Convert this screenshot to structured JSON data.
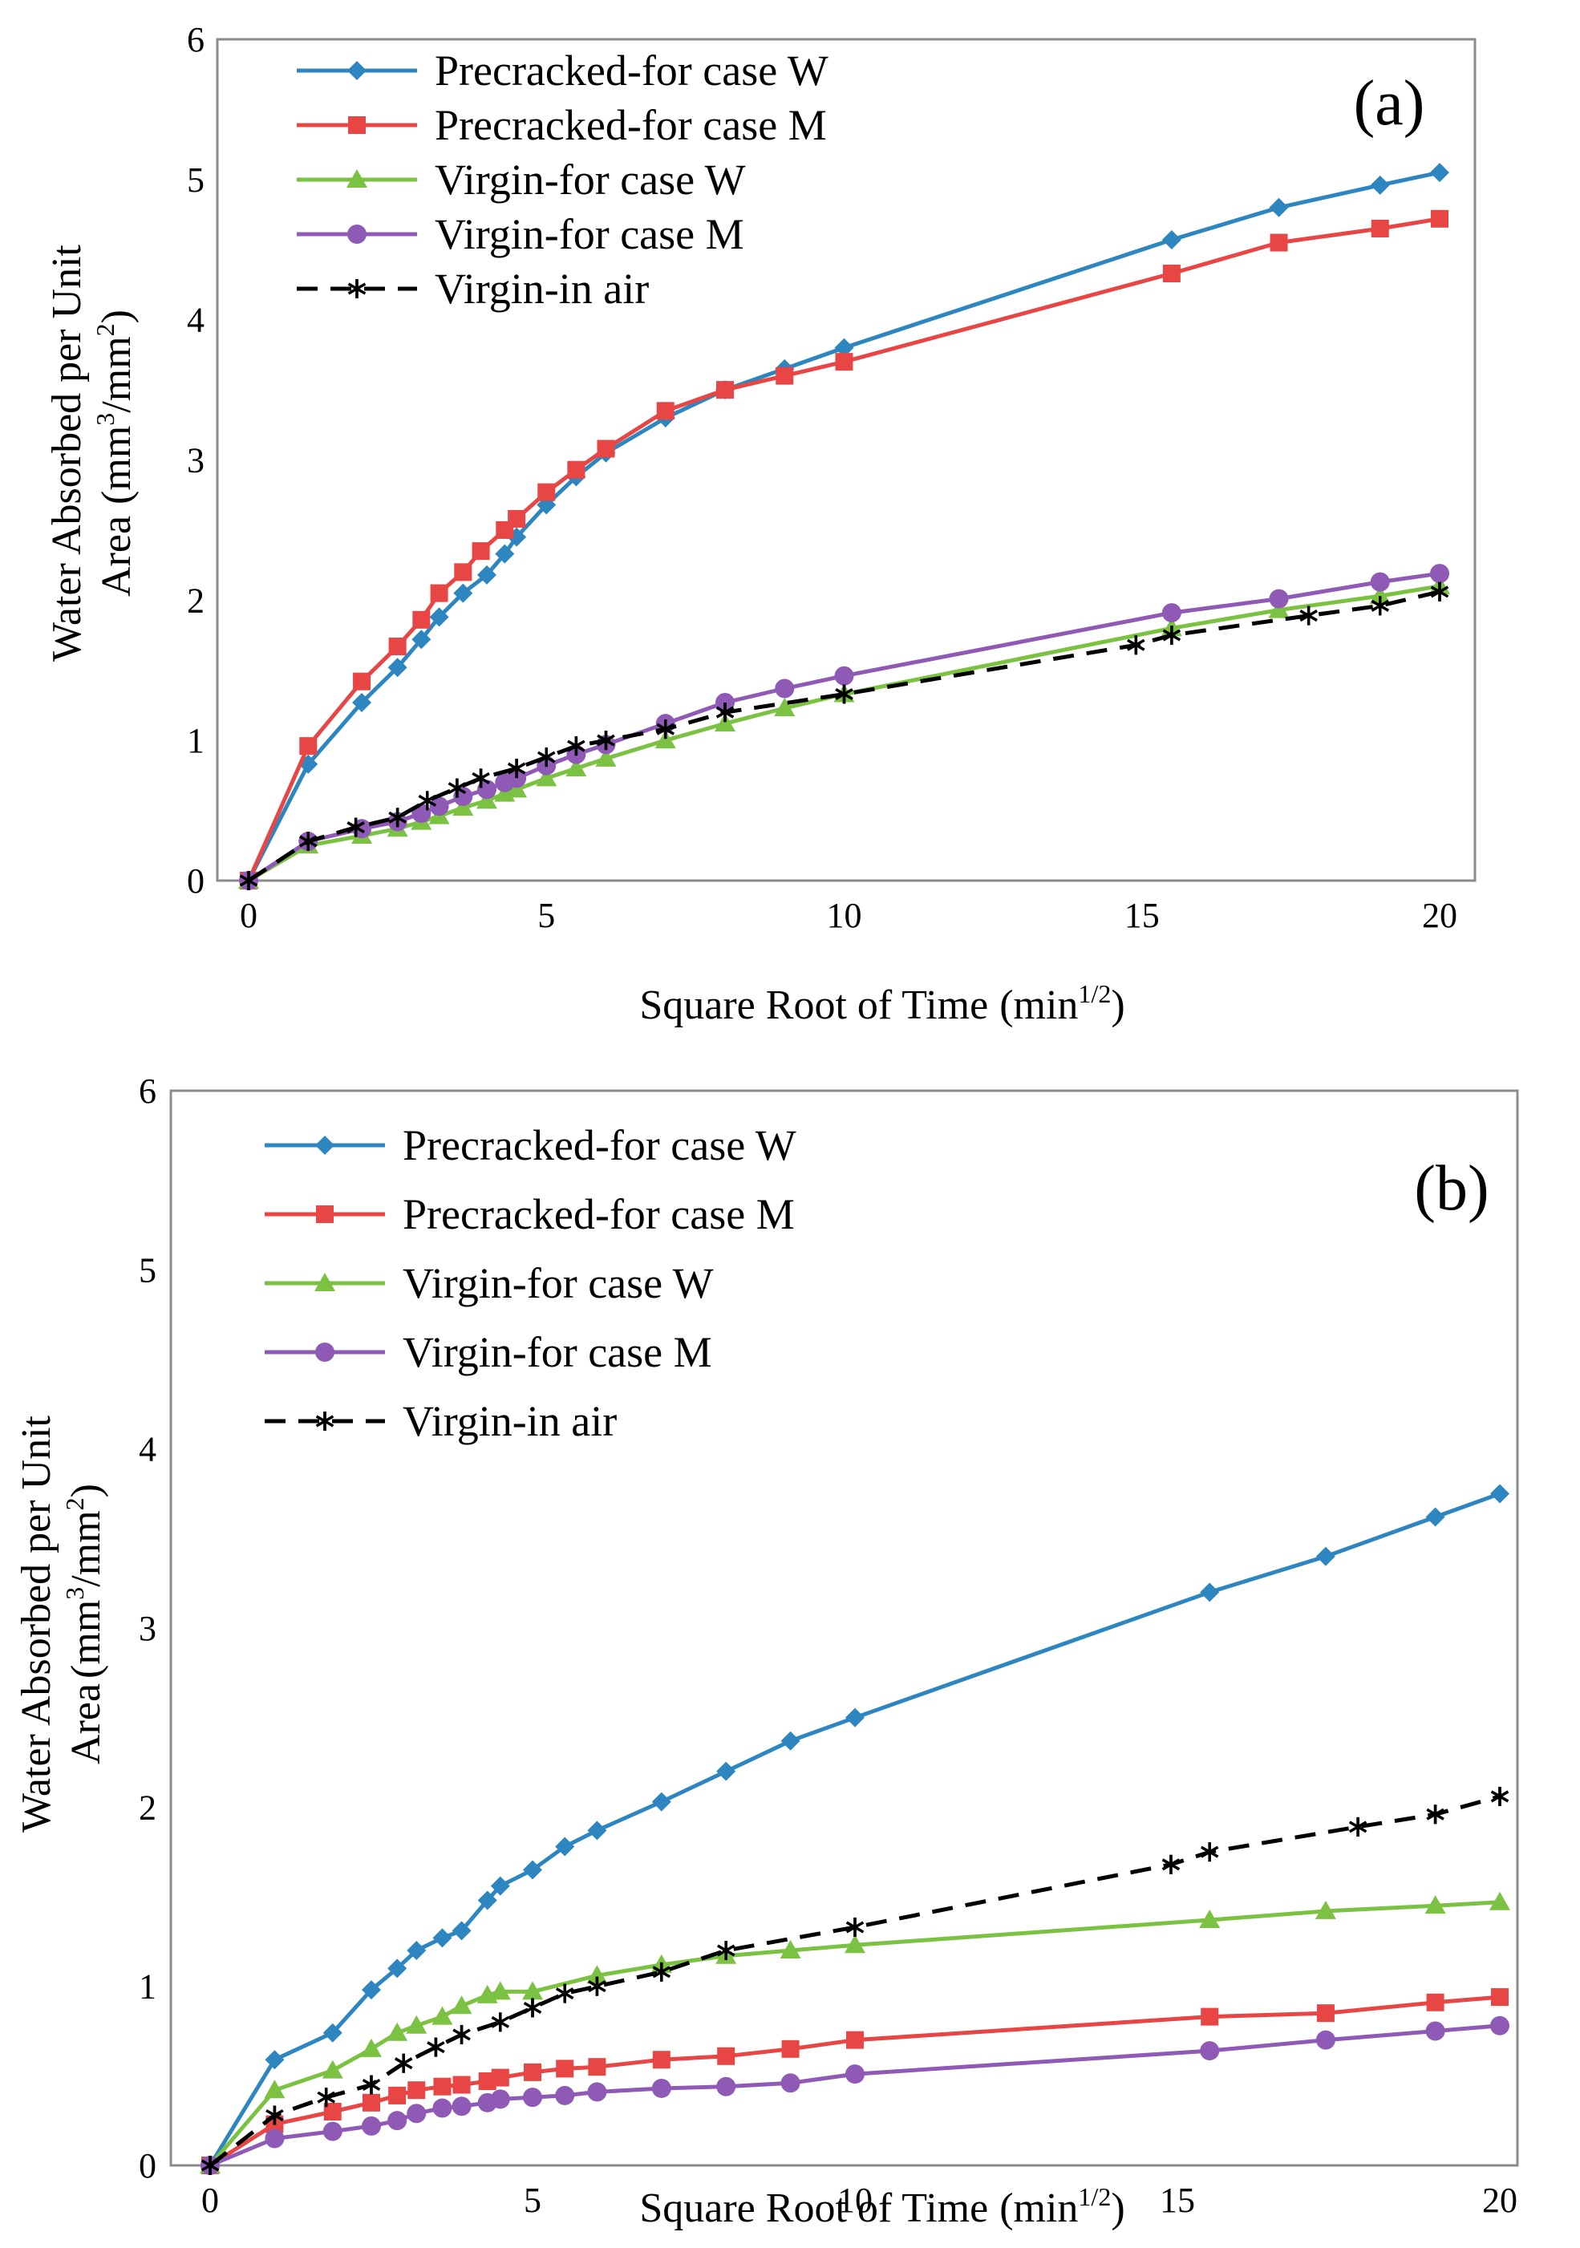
{
  "chart_data": [
    {
      "type": "line",
      "panel_label": "(a)",
      "xlabel": "Square Root of Time",
      "xlabel_unit": "min",
      "xlabel_unit_exp": "1/2",
      "ylabel_line1": "Water Absorbed per Unit",
      "ylabel_line2": "Area",
      "ylabel_unit": "mm",
      "ylabel_unit_exp_num": "3",
      "ylabel_unit_mid": "/mm",
      "ylabel_unit_exp_den": "2",
      "xlim": [
        0,
        20
      ],
      "ylim": [
        0,
        6
      ],
      "xticks": [
        "0",
        "5",
        "10",
        "15",
        "20"
      ],
      "yticks": [
        "0",
        "1",
        "2",
        "3",
        "4",
        "5",
        "6"
      ],
      "series": [
        {
          "name": "Precracked-for case W",
          "color": "#2E86C1",
          "marker": "diamond",
          "dash": false,
          "x": [
            0,
            1,
            1.9,
            2.5,
            2.9,
            3.2,
            3.6,
            4,
            4.3,
            4.5,
            5,
            5.5,
            6,
            7,
            8,
            9,
            10,
            15.5,
            17.3,
            19,
            20
          ],
          "y": [
            0,
            0.83,
            1.27,
            1.52,
            1.72,
            1.88,
            2.05,
            2.18,
            2.33,
            2.45,
            2.68,
            2.88,
            3.05,
            3.3,
            3.5,
            3.65,
            3.8,
            4.57,
            4.8,
            4.96,
            5.05
          ]
        },
        {
          "name": "Precracked-for case M",
          "color": "#E84545",
          "marker": "square",
          "dash": false,
          "x": [
            0,
            1,
            1.9,
            2.5,
            2.9,
            3.2,
            3.6,
            3.9,
            4.3,
            4.5,
            5,
            5.5,
            6,
            7,
            8,
            9,
            10,
            15.5,
            17.3,
            19,
            20
          ],
          "y": [
            0,
            0.96,
            1.42,
            1.67,
            1.86,
            2.05,
            2.2,
            2.35,
            2.5,
            2.58,
            2.77,
            2.93,
            3.08,
            3.35,
            3.5,
            3.6,
            3.7,
            4.33,
            4.55,
            4.65,
            4.72
          ]
        },
        {
          "name": "Virgin-for case W",
          "color": "#7CC242",
          "marker": "triangle",
          "dash": false,
          "x": [
            0,
            1,
            1.9,
            2.5,
            2.9,
            3.2,
            3.6,
            4,
            4.3,
            4.5,
            5,
            5.5,
            6,
            7,
            8,
            9,
            10,
            15.5,
            17.3,
            19,
            20
          ],
          "y": [
            0,
            0.25,
            0.32,
            0.37,
            0.42,
            0.46,
            0.52,
            0.57,
            0.62,
            0.65,
            0.73,
            0.8,
            0.87,
            1.0,
            1.12,
            1.23,
            1.33,
            1.8,
            1.93,
            2.03,
            2.1
          ]
        },
        {
          "name": "Virgin-for case M",
          "color": "#8E5AB5",
          "marker": "circle",
          "dash": false,
          "x": [
            0,
            1,
            1.9,
            2.5,
            2.9,
            3.2,
            3.6,
            4,
            4.3,
            4.5,
            5,
            5.5,
            6,
            7,
            8,
            9,
            10,
            15.5,
            17.3,
            19,
            20
          ],
          "y": [
            0,
            0.28,
            0.37,
            0.42,
            0.48,
            0.53,
            0.6,
            0.65,
            0.7,
            0.73,
            0.82,
            0.9,
            0.97,
            1.12,
            1.27,
            1.37,
            1.46,
            1.91,
            2.01,
            2.13,
            2.19
          ]
        },
        {
          "name": "Virgin-in air",
          "color": "#000000",
          "marker": "asterisk",
          "dash": true,
          "x": [
            0,
            1,
            1.8,
            2.5,
            3,
            3.5,
            3.9,
            4.5,
            5,
            5.5,
            6,
            7,
            8,
            10,
            14.9,
            15.5,
            17.8,
            19,
            20
          ],
          "y": [
            0,
            0.28,
            0.38,
            0.45,
            0.57,
            0.66,
            0.73,
            0.8,
            0.88,
            0.96,
            1.0,
            1.08,
            1.2,
            1.33,
            1.68,
            1.75,
            1.89,
            1.96,
            2.06
          ]
        }
      ]
    },
    {
      "type": "line",
      "panel_label": "(b)",
      "xlabel": "Square Root of Time",
      "xlabel_unit": "min",
      "xlabel_unit_exp": "1/2",
      "ylabel_line1": "Water Absorbed per Unit",
      "ylabel_line2": "Area",
      "ylabel_unit": "mm",
      "ylabel_unit_exp_num": "3",
      "ylabel_unit_mid": "/mm",
      "ylabel_unit_exp_den": "2",
      "xlim": [
        0,
        20
      ],
      "ylim": [
        0,
        6
      ],
      "xticks": [
        "0",
        "5",
        "10",
        "15",
        "20"
      ],
      "yticks": [
        "0",
        "1",
        "2",
        "3",
        "4",
        "5",
        "6"
      ],
      "series": [
        {
          "name": "Precracked-for case W",
          "color": "#2E86C1",
          "marker": "diamond",
          "dash": false,
          "x": [
            0,
            1,
            1.9,
            2.5,
            2.9,
            3.2,
            3.6,
            3.9,
            4.3,
            4.5,
            5,
            5.5,
            6,
            7,
            8,
            9,
            10,
            15.5,
            17.3,
            19,
            20
          ],
          "y": [
            0,
            0.59,
            0.74,
            0.98,
            1.1,
            1.2,
            1.27,
            1.31,
            1.48,
            1.56,
            1.65,
            1.78,
            1.87,
            2.03,
            2.2,
            2.37,
            2.5,
            3.2,
            3.4,
            3.62,
            3.75
          ]
        },
        {
          "name": "Precracked-for case M",
          "color": "#E84545",
          "marker": "square",
          "dash": false,
          "x": [
            0,
            1,
            1.9,
            2.5,
            2.9,
            3.2,
            3.6,
            3.9,
            4.3,
            4.5,
            5,
            5.5,
            6,
            7,
            8,
            9,
            10,
            15.5,
            17.3,
            19,
            20
          ],
          "y": [
            0,
            0.23,
            0.3,
            0.35,
            0.39,
            0.42,
            0.44,
            0.45,
            0.47,
            0.49,
            0.52,
            0.54,
            0.55,
            0.59,
            0.61,
            0.65,
            0.7,
            0.83,
            0.85,
            0.91,
            0.94
          ]
        },
        {
          "name": "Virgin-for case W",
          "color": "#7CC242",
          "marker": "triangle",
          "dash": false,
          "x": [
            0,
            1,
            1.9,
            2.5,
            2.9,
            3.2,
            3.6,
            3.9,
            4.3,
            4.5,
            5,
            6,
            7,
            8,
            9,
            10,
            15.5,
            17.3,
            19,
            20
          ],
          "y": [
            0,
            0.42,
            0.53,
            0.65,
            0.74,
            0.78,
            0.83,
            0.89,
            0.95,
            0.97,
            0.97,
            1.06,
            1.12,
            1.17,
            1.2,
            1.23,
            1.37,
            1.42,
            1.45,
            1.47
          ]
        },
        {
          "name": "Virgin-for case M",
          "color": "#8E5AB5",
          "marker": "circle",
          "dash": false,
          "x": [
            0,
            1,
            1.9,
            2.5,
            2.9,
            3.2,
            3.6,
            3.9,
            4.3,
            4.5,
            5,
            5.5,
            6,
            7,
            8,
            9,
            10,
            15.5,
            17.3,
            19,
            20
          ],
          "y": [
            0,
            0.15,
            0.19,
            0.22,
            0.25,
            0.29,
            0.32,
            0.33,
            0.35,
            0.37,
            0.38,
            0.39,
            0.41,
            0.43,
            0.44,
            0.46,
            0.51,
            0.64,
            0.7,
            0.75,
            0.78
          ]
        },
        {
          "name": "Virgin-in air",
          "color": "#000000",
          "marker": "asterisk",
          "dash": true,
          "x": [
            0,
            1,
            1.8,
            2.5,
            3,
            3.5,
            3.9,
            4.5,
            5,
            5.5,
            6,
            7,
            8,
            10,
            14.9,
            15.5,
            17.8,
            19,
            20
          ],
          "y": [
            0,
            0.28,
            0.38,
            0.45,
            0.57,
            0.66,
            0.73,
            0.8,
            0.88,
            0.96,
            1.0,
            1.08,
            1.2,
            1.33,
            1.68,
            1.75,
            1.89,
            1.96,
            2.06
          ]
        }
      ]
    }
  ]
}
